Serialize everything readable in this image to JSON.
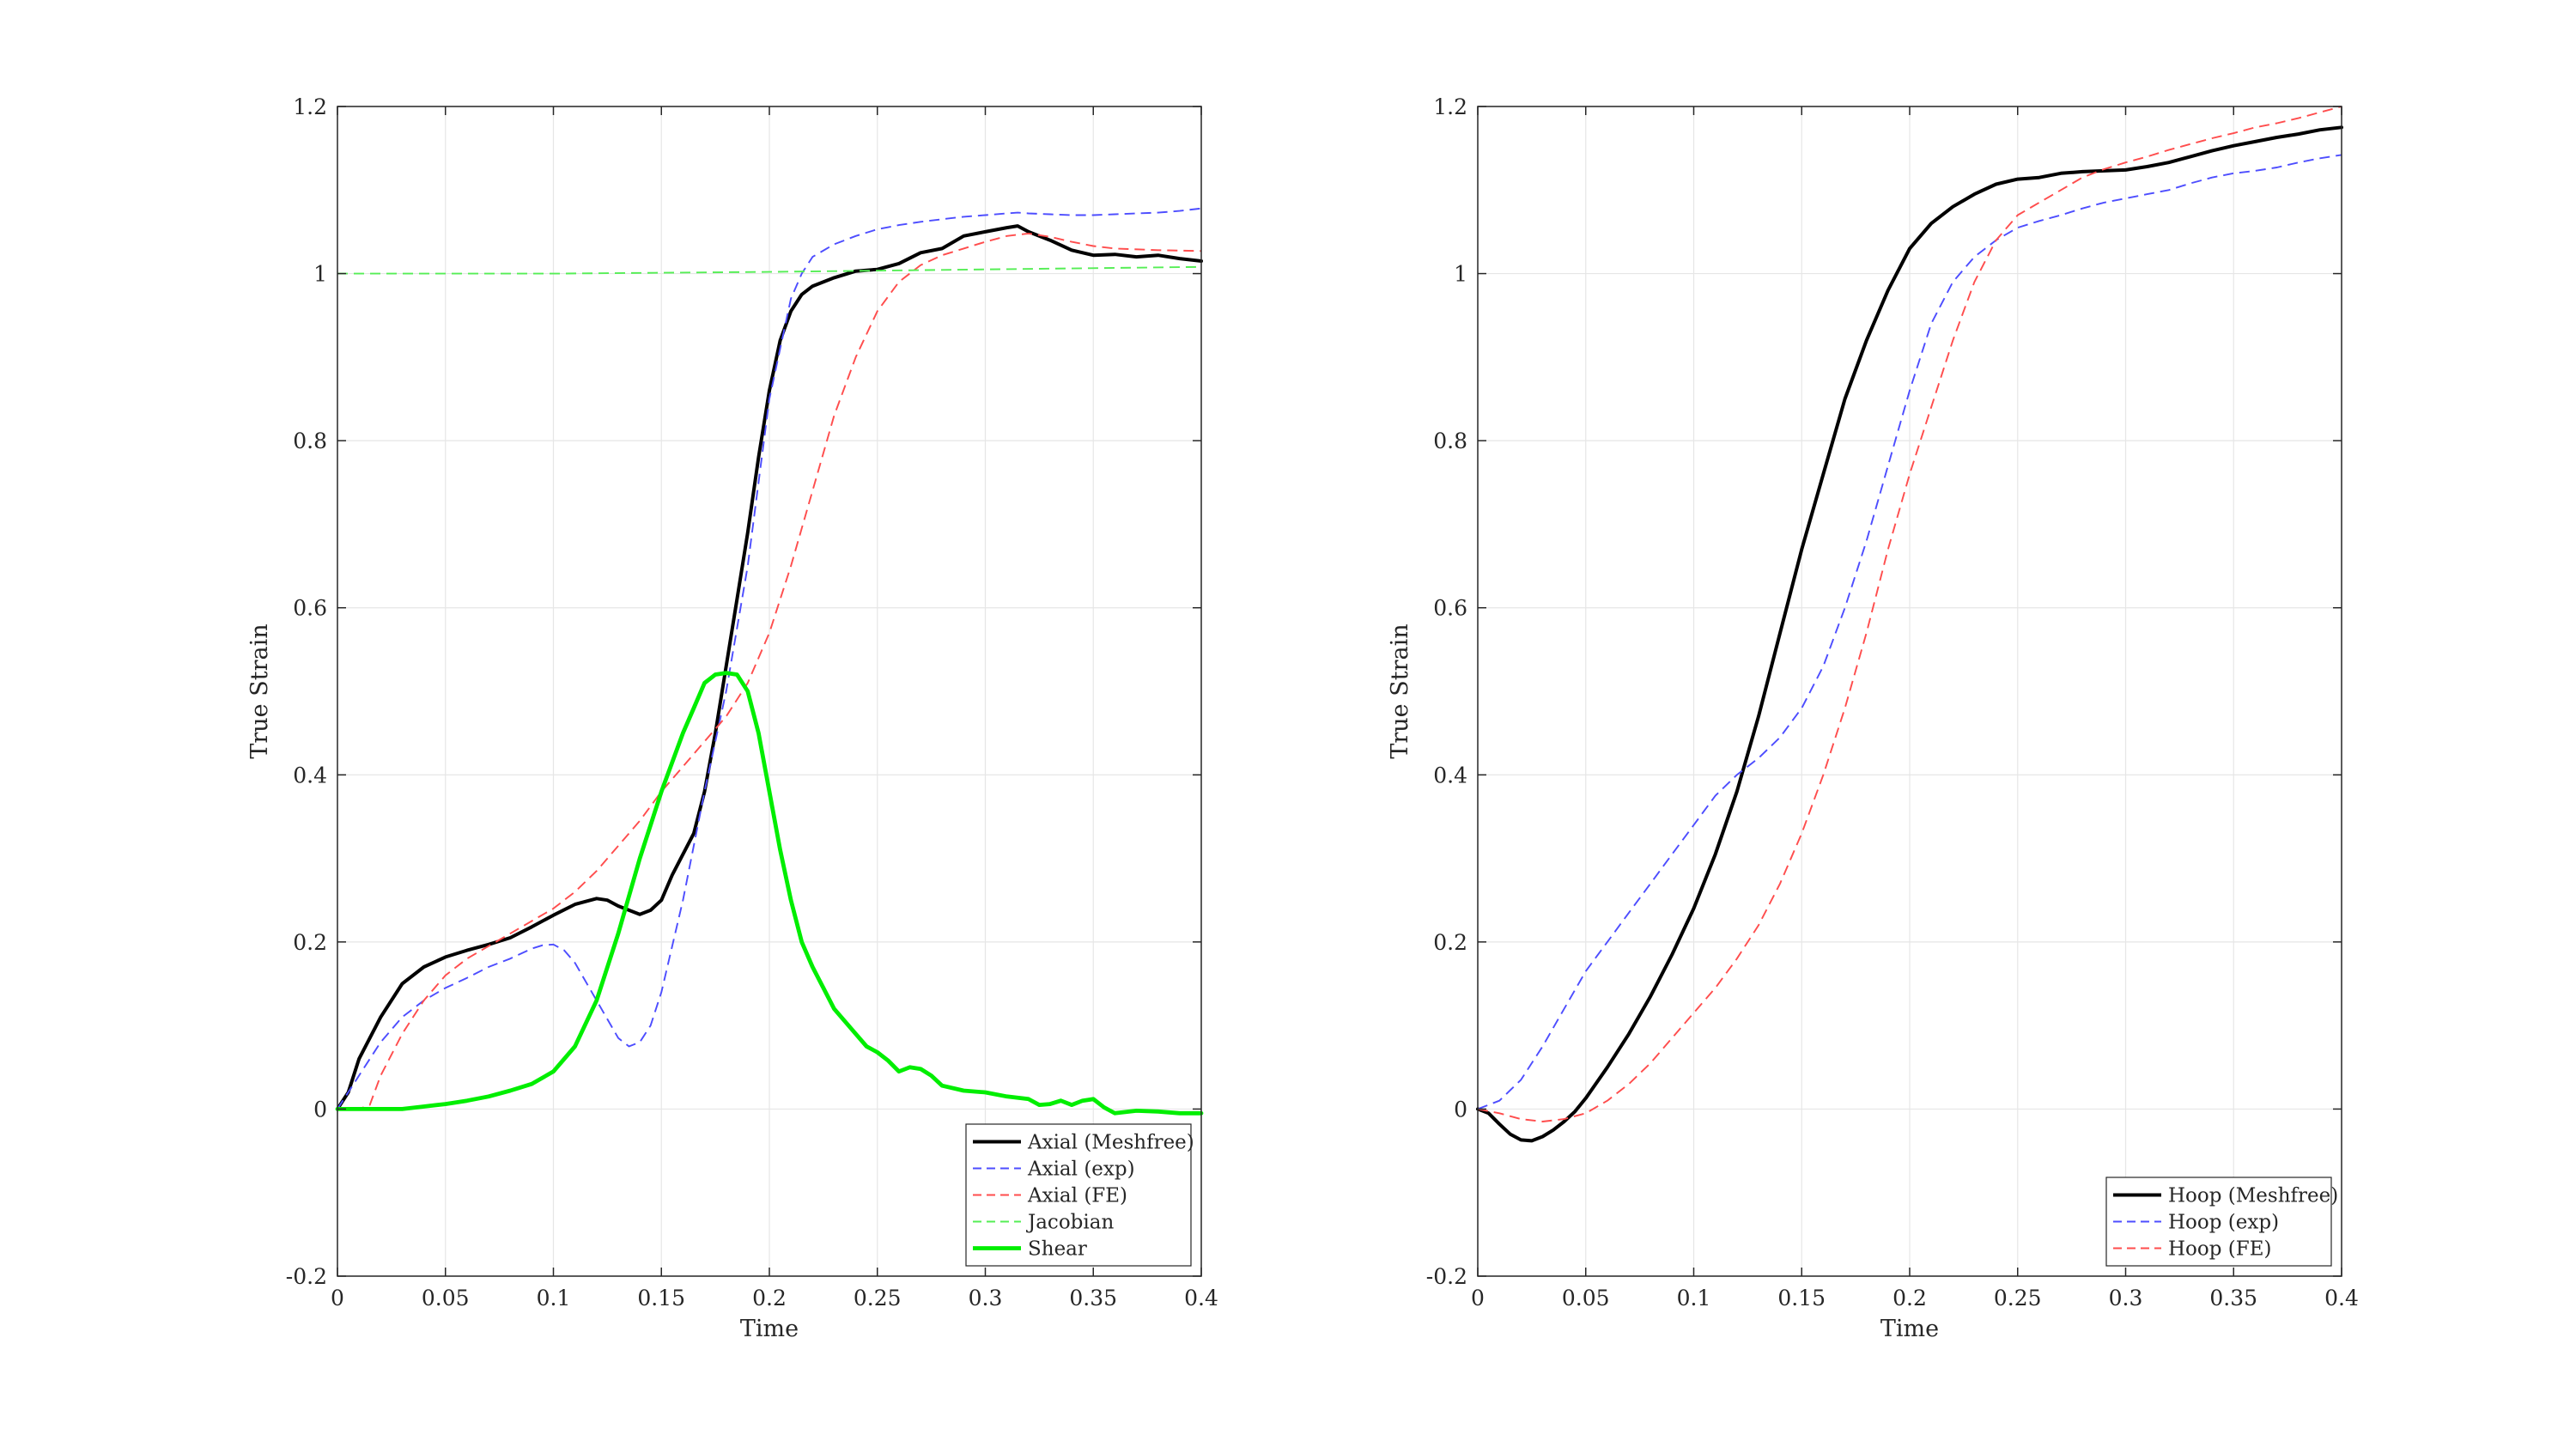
{
  "chart_data": [
    {
      "type": "line",
      "title": "",
      "xlabel": "Time",
      "ylabel": "True Strain",
      "xlim": [
        0,
        0.4
      ],
      "ylim": [
        -0.2,
        1.2
      ],
      "xticks": [
        0,
        0.05,
        0.1,
        0.15,
        0.2,
        0.25,
        0.3,
        0.35,
        0.4
      ],
      "xtick_labels": [
        "0",
        "0.05",
        "0.1",
        "0.15",
        "0.2",
        "0.25",
        "0.3",
        "0.35",
        "0.4"
      ],
      "yticks": [
        -0.2,
        0,
        0.2,
        0.4,
        0.6,
        0.8,
        1,
        1.2
      ],
      "ytick_labels": [
        "-0.2",
        "0",
        "0.2",
        "0.4",
        "0.6",
        "0.8",
        "1",
        "1.2"
      ],
      "grid": true,
      "legend_position": "bottom-right",
      "series": [
        {
          "name": "Axial (Meshfree)",
          "color": "#000000",
          "style": "solid",
          "width": 2.5,
          "x": [
            0,
            0.005,
            0.01,
            0.02,
            0.03,
            0.04,
            0.05,
            0.06,
            0.07,
            0.08,
            0.09,
            0.1,
            0.11,
            0.12,
            0.125,
            0.13,
            0.14,
            0.145,
            0.15,
            0.155,
            0.16,
            0.165,
            0.17,
            0.175,
            0.18,
            0.185,
            0.19,
            0.195,
            0.2,
            0.205,
            0.21,
            0.215,
            0.22,
            0.23,
            0.24,
            0.25,
            0.26,
            0.27,
            0.28,
            0.29,
            0.3,
            0.31,
            0.315,
            0.32,
            0.33,
            0.34,
            0.35,
            0.36,
            0.37,
            0.38,
            0.39,
            0.4
          ],
          "y": [
            0,
            0.02,
            0.06,
            0.11,
            0.15,
            0.17,
            0.182,
            0.19,
            0.197,
            0.205,
            0.218,
            0.232,
            0.245,
            0.252,
            0.25,
            0.243,
            0.233,
            0.238,
            0.25,
            0.28,
            0.305,
            0.33,
            0.38,
            0.45,
            0.53,
            0.61,
            0.69,
            0.78,
            0.86,
            0.92,
            0.955,
            0.975,
            0.985,
            0.995,
            1.003,
            1.005,
            1.012,
            1.025,
            1.03,
            1.045,
            1.05,
            1.055,
            1.057,
            1.05,
            1.04,
            1.028,
            1.022,
            1.023,
            1.02,
            1.022,
            1.018,
            1.015
          ]
        },
        {
          "name": "Axial (exp)",
          "color": "#4d4dff",
          "style": "dashed",
          "width": 1.2,
          "x": [
            0,
            0.01,
            0.02,
            0.03,
            0.04,
            0.05,
            0.06,
            0.07,
            0.08,
            0.09,
            0.095,
            0.1,
            0.105,
            0.11,
            0.12,
            0.13,
            0.135,
            0.14,
            0.145,
            0.15,
            0.16,
            0.17,
            0.18,
            0.19,
            0.2,
            0.21,
            0.215,
            0.22,
            0.23,
            0.24,
            0.25,
            0.26,
            0.27,
            0.28,
            0.29,
            0.3,
            0.31,
            0.315,
            0.32,
            0.33,
            0.34,
            0.35,
            0.36,
            0.37,
            0.38,
            0.39,
            0.4
          ],
          "y": [
            0,
            0.04,
            0.08,
            0.11,
            0.13,
            0.145,
            0.157,
            0.17,
            0.18,
            0.192,
            0.196,
            0.197,
            0.19,
            0.175,
            0.13,
            0.085,
            0.075,
            0.08,
            0.1,
            0.14,
            0.25,
            0.38,
            0.5,
            0.65,
            0.85,
            0.97,
            1.0,
            1.02,
            1.035,
            1.045,
            1.053,
            1.058,
            1.062,
            1.065,
            1.068,
            1.07,
            1.072,
            1.073,
            1.072,
            1.071,
            1.07,
            1.07,
            1.071,
            1.072,
            1.073,
            1.075,
            1.078
          ]
        },
        {
          "name": "Axial (FE)",
          "color": "#ff4d4d",
          "style": "dashed",
          "width": 1.2,
          "x": [
            0,
            0.01,
            0.015,
            0.02,
            0.03,
            0.04,
            0.05,
            0.06,
            0.07,
            0.08,
            0.09,
            0.1,
            0.11,
            0.12,
            0.13,
            0.14,
            0.15,
            0.16,
            0.17,
            0.18,
            0.19,
            0.2,
            0.21,
            0.22,
            0.23,
            0.24,
            0.25,
            0.26,
            0.27,
            0.28,
            0.29,
            0.3,
            0.31,
            0.32,
            0.33,
            0.34,
            0.35,
            0.36,
            0.38,
            0.4
          ],
          "y": [
            0,
            0,
            0.005,
            0.04,
            0.09,
            0.13,
            0.16,
            0.18,
            0.195,
            0.21,
            0.225,
            0.24,
            0.26,
            0.285,
            0.315,
            0.345,
            0.38,
            0.41,
            0.44,
            0.47,
            0.51,
            0.57,
            0.65,
            0.74,
            0.83,
            0.9,
            0.955,
            0.99,
            1.01,
            1.022,
            1.03,
            1.038,
            1.045,
            1.048,
            1.044,
            1.038,
            1.033,
            1.03,
            1.028,
            1.027
          ]
        },
        {
          "name": "Jacobian",
          "color": "#55ee55",
          "style": "dashed",
          "width": 1.2,
          "x": [
            0,
            0.1,
            0.2,
            0.3,
            0.4
          ],
          "y": [
            1.0,
            1.0,
            1.002,
            1.005,
            1.008
          ]
        },
        {
          "name": "Shear",
          "color": "#00ee00",
          "style": "solid",
          "width": 3,
          "x": [
            0,
            0.01,
            0.02,
            0.03,
            0.04,
            0.05,
            0.06,
            0.07,
            0.08,
            0.09,
            0.1,
            0.11,
            0.12,
            0.13,
            0.14,
            0.15,
            0.16,
            0.165,
            0.17,
            0.175,
            0.18,
            0.185,
            0.19,
            0.195,
            0.2,
            0.205,
            0.21,
            0.215,
            0.22,
            0.225,
            0.23,
            0.235,
            0.24,
            0.245,
            0.25,
            0.255,
            0.26,
            0.265,
            0.27,
            0.275,
            0.28,
            0.29,
            0.3,
            0.31,
            0.32,
            0.325,
            0.33,
            0.335,
            0.34,
            0.345,
            0.35,
            0.355,
            0.36,
            0.37,
            0.38,
            0.39,
            0.4
          ],
          "y": [
            0,
            0,
            0,
            0,
            0.003,
            0.006,
            0.01,
            0.015,
            0.022,
            0.03,
            0.045,
            0.075,
            0.13,
            0.21,
            0.3,
            0.38,
            0.45,
            0.48,
            0.51,
            0.52,
            0.522,
            0.52,
            0.5,
            0.45,
            0.38,
            0.31,
            0.25,
            0.2,
            0.17,
            0.145,
            0.12,
            0.105,
            0.09,
            0.075,
            0.068,
            0.058,
            0.045,
            0.05,
            0.048,
            0.04,
            0.028,
            0.022,
            0.02,
            0.015,
            0.012,
            0.005,
            0.006,
            0.01,
            0.005,
            0.01,
            0.012,
            0.002,
            -0.005,
            -0.002,
            -0.003,
            -0.005,
            -0.005
          ]
        }
      ]
    },
    {
      "type": "line",
      "title": "",
      "xlabel": "Time",
      "ylabel": "True Strain",
      "xlim": [
        0,
        0.4
      ],
      "ylim": [
        -0.2,
        1.2
      ],
      "xticks": [
        0,
        0.05,
        0.1,
        0.15,
        0.2,
        0.25,
        0.3,
        0.35,
        0.4
      ],
      "xtick_labels": [
        "0",
        "0.05",
        "0.1",
        "0.15",
        "0.2",
        "0.25",
        "0.3",
        "0.35",
        "0.4"
      ],
      "yticks": [
        -0.2,
        0,
        0.2,
        0.4,
        0.6,
        0.8,
        1,
        1.2
      ],
      "ytick_labels": [
        "-0.2",
        "0",
        "0.2",
        "0.4",
        "0.6",
        "0.8",
        "1",
        "1.2"
      ],
      "grid": true,
      "legend_position": "bottom-right",
      "series": [
        {
          "name": "Hoop (Meshfree)",
          "color": "#000000",
          "style": "solid",
          "width": 2.5,
          "x": [
            0,
            0.005,
            0.01,
            0.015,
            0.02,
            0.025,
            0.03,
            0.035,
            0.04,
            0.045,
            0.05,
            0.06,
            0.07,
            0.08,
            0.09,
            0.1,
            0.11,
            0.12,
            0.13,
            0.14,
            0.15,
            0.16,
            0.17,
            0.18,
            0.19,
            0.2,
            0.21,
            0.22,
            0.23,
            0.24,
            0.25,
            0.26,
            0.27,
            0.28,
            0.29,
            0.3,
            0.31,
            0.32,
            0.33,
            0.34,
            0.35,
            0.36,
            0.37,
            0.38,
            0.39,
            0.4
          ],
          "y": [
            0,
            -0.005,
            -0.018,
            -0.03,
            -0.037,
            -0.038,
            -0.033,
            -0.025,
            -0.015,
            -0.003,
            0.013,
            0.05,
            0.09,
            0.135,
            0.185,
            0.24,
            0.305,
            0.38,
            0.47,
            0.57,
            0.67,
            0.76,
            0.85,
            0.92,
            0.98,
            1.03,
            1.06,
            1.08,
            1.095,
            1.107,
            1.113,
            1.115,
            1.12,
            1.122,
            1.123,
            1.124,
            1.128,
            1.133,
            1.14,
            1.147,
            1.153,
            1.158,
            1.163,
            1.167,
            1.172,
            1.175
          ]
        },
        {
          "name": "Hoop (exp)",
          "color": "#4d4dff",
          "style": "dashed",
          "width": 1.2,
          "x": [
            0,
            0.01,
            0.02,
            0.03,
            0.04,
            0.05,
            0.06,
            0.07,
            0.08,
            0.09,
            0.1,
            0.11,
            0.12,
            0.13,
            0.14,
            0.15,
            0.16,
            0.17,
            0.18,
            0.19,
            0.2,
            0.21,
            0.22,
            0.23,
            0.24,
            0.25,
            0.26,
            0.27,
            0.28,
            0.29,
            0.3,
            0.31,
            0.32,
            0.33,
            0.34,
            0.35,
            0.36,
            0.37,
            0.38,
            0.39,
            0.4
          ],
          "y": [
            0,
            0.01,
            0.035,
            0.075,
            0.12,
            0.165,
            0.2,
            0.235,
            0.27,
            0.305,
            0.34,
            0.375,
            0.4,
            0.42,
            0.445,
            0.48,
            0.53,
            0.6,
            0.68,
            0.77,
            0.86,
            0.94,
            0.99,
            1.02,
            1.04,
            1.055,
            1.063,
            1.07,
            1.078,
            1.085,
            1.09,
            1.095,
            1.1,
            1.108,
            1.115,
            1.12,
            1.123,
            1.127,
            1.133,
            1.138,
            1.142
          ]
        },
        {
          "name": "Hoop (FE)",
          "color": "#ff4d4d",
          "style": "dashed",
          "width": 1.2,
          "x": [
            0,
            0.01,
            0.02,
            0.03,
            0.04,
            0.05,
            0.06,
            0.07,
            0.08,
            0.09,
            0.1,
            0.11,
            0.12,
            0.13,
            0.14,
            0.15,
            0.16,
            0.17,
            0.18,
            0.19,
            0.2,
            0.21,
            0.22,
            0.23,
            0.24,
            0.25,
            0.26,
            0.27,
            0.28,
            0.29,
            0.3,
            0.31,
            0.32,
            0.33,
            0.34,
            0.35,
            0.36,
            0.37,
            0.38,
            0.39,
            0.4
          ],
          "y": [
            0,
            -0.005,
            -0.012,
            -0.015,
            -0.012,
            -0.005,
            0.01,
            0.03,
            0.055,
            0.085,
            0.115,
            0.145,
            0.18,
            0.22,
            0.27,
            0.33,
            0.4,
            0.48,
            0.57,
            0.67,
            0.76,
            0.84,
            0.92,
            0.99,
            1.04,
            1.07,
            1.085,
            1.1,
            1.115,
            1.125,
            1.133,
            1.14,
            1.148,
            1.155,
            1.162,
            1.168,
            1.175,
            1.18,
            1.186,
            1.193,
            1.2
          ]
        }
      ]
    }
  ]
}
